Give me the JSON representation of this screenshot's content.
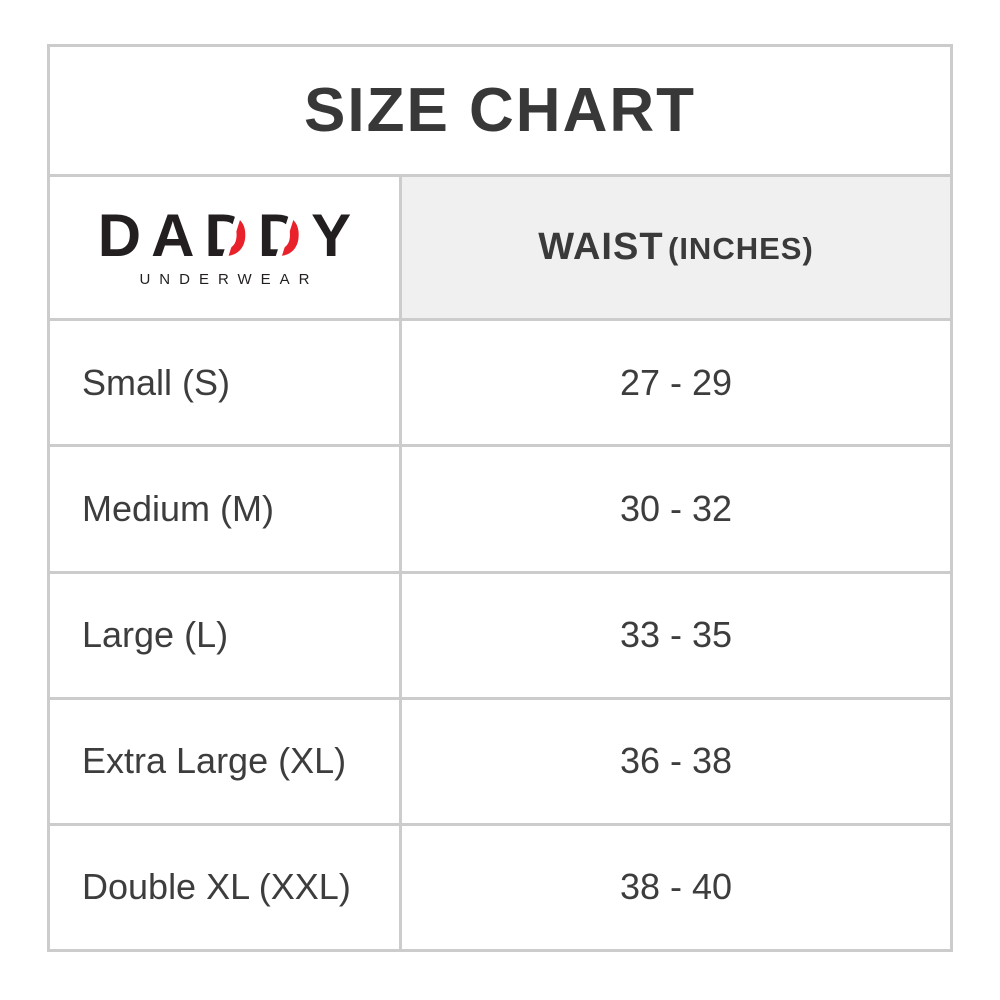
{
  "title": "SIZE CHART",
  "brand": {
    "word": "DADDY",
    "letters": [
      "D",
      "A",
      "D",
      "D",
      "Y"
    ],
    "subtitle": "UNDERWEAR"
  },
  "header": {
    "waist_label": "WAIST",
    "waist_unit": "(INCHES)"
  },
  "rows": [
    {
      "size": "Small (S)",
      "waist": "27 - 29"
    },
    {
      "size": "Medium (M)",
      "waist": "30 - 32"
    },
    {
      "size": "Large (L)",
      "waist": "33 - 35"
    },
    {
      "size": "Extra Large (XL)",
      "waist": "36 - 38"
    },
    {
      "size": "Double XL (XXL)",
      "waist": "38 - 40"
    }
  ],
  "colors": {
    "border": "#cccccc",
    "header_bg": "#f0f0f0",
    "title_text": "#383838",
    "body_text": "#3d3d3d",
    "logo_black": "#231f20",
    "logo_red": "#e8212b"
  },
  "chart_data": {
    "type": "table",
    "title": "SIZE CHART",
    "columns": [
      "Size (brand: DADDY UNDERWEAR)",
      "WAIST (INCHES)"
    ],
    "rows": [
      [
        "Small (S)",
        "27 - 29"
      ],
      [
        "Medium (M)",
        "30 - 32"
      ],
      [
        "Large (L)",
        "33 - 35"
      ],
      [
        "Extra Large (XL)",
        "36 - 38"
      ],
      [
        "Double XL (XXL)",
        "38 - 40"
      ]
    ]
  }
}
